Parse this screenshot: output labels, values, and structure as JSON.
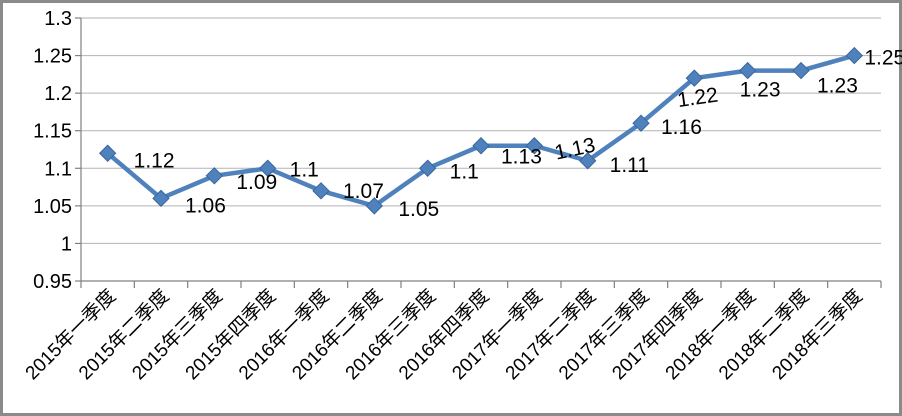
{
  "chart_data": {
    "type": "line",
    "title": "",
    "xlabel": "",
    "ylabel": "",
    "categories": [
      "2015年一季度",
      "2015年二季度",
      "2015年三季度",
      "2015年四季度",
      "2016年一季度",
      "2016年二季度",
      "2016年三季度",
      "2016年四季度",
      "2017年一季度",
      "2017年二季度",
      "2017年三季度",
      "2017年四季度",
      "2018年一季度",
      "2018年二季度",
      "2018年三季度"
    ],
    "series": [
      {
        "name": "",
        "values": [
          1.12,
          1.06,
          1.09,
          1.1,
          1.07,
          1.05,
          1.1,
          1.13,
          1.13,
          1.11,
          1.16,
          1.22,
          1.23,
          1.23,
          1.25
        ],
        "value_labels": [
          "1.12",
          "1.06",
          "1.09",
          "1.1",
          "1.07",
          "1.05",
          "1.1",
          "1.13",
          "1.13",
          "1.11",
          "1.16",
          "1.22",
          "1.23",
          "1.23",
          "1.25"
        ]
      }
    ],
    "ylim": [
      0.95,
      1.3
    ],
    "ytick_values": [
      1.3,
      1.25,
      1.2,
      1.15,
      1.1,
      1.05,
      1.0,
      0.95
    ],
    "ytick_labels": [
      "1.3",
      "1.25",
      "1.2",
      "1.15",
      "1.1",
      "1.05",
      "1",
      "0.95"
    ],
    "grid": true,
    "legend": false,
    "marker": "diamond",
    "colors": {
      "line": "#4F81BD",
      "marker_fill": "#4F81BD",
      "marker_edge": "#3A679C",
      "gridline": "#B3B3B3",
      "axis": "#808080",
      "text": "#000000",
      "frame_border": "#8A8A8A",
      "background": "#FFFFFF"
    }
  }
}
